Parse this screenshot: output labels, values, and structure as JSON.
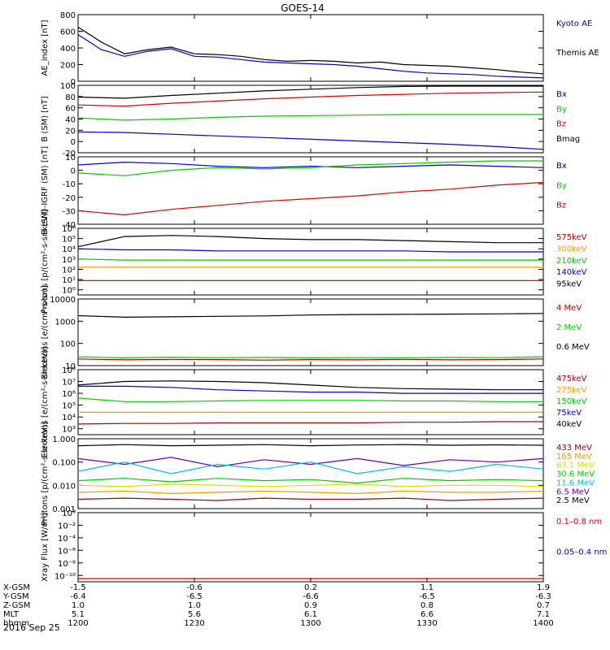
{
  "title": "GOES-14",
  "date_label": "2016 Sep 25",
  "colors": {
    "black": "#000000",
    "blue": "#0000cc",
    "green": "#00cc00",
    "red": "#dd0000",
    "darkred": "#aa0000",
    "orange": "#ff9900",
    "cyan": "#00bbee",
    "yellow": "#dddd00",
    "purple": "#6600aa"
  },
  "x_rows": [
    {
      "label": "X-GSM",
      "values": [
        "-1.5",
        "-0.6",
        "0.2",
        "1.1",
        "1.9"
      ]
    },
    {
      "label": "Y-GSM",
      "values": [
        "-6.4",
        "-6.5",
        "-6.6",
        "-6.5",
        "-6.3"
      ]
    },
    {
      "label": "Z-GSM",
      "values": [
        "1.0",
        "1.0",
        "0.9",
        "0.8",
        "0.7"
      ]
    },
    {
      "label": "MLT",
      "values": [
        "5.1",
        "5.6",
        "6.1",
        "6.6",
        "7.1"
      ]
    },
    {
      "label": "hhmm",
      "values": [
        "1200",
        "1230",
        "1300",
        "1330",
        "1400"
      ]
    }
  ],
  "chart_data": [
    {
      "type": "line",
      "ylabel": "AE_index [nT]",
      "scale": "linear",
      "ylim": [
        0,
        800
      ],
      "y_ticks": [
        0,
        200,
        400,
        600,
        800
      ],
      "x": [
        0,
        6,
        12,
        18,
        24,
        30,
        36,
        42,
        48,
        54,
        60,
        66,
        72,
        78,
        84,
        90,
        96,
        102,
        108,
        114,
        120
      ],
      "legend": [
        {
          "name": "Kyoto AE",
          "color": "blue"
        },
        {
          "name": "Themis AE",
          "color": "black"
        }
      ],
      "series": [
        {
          "name": "Kyoto AE",
          "color": "blue",
          "values": [
            560,
            380,
            300,
            360,
            390,
            300,
            290,
            260,
            230,
            220,
            210,
            200,
            180,
            150,
            120,
            100,
            90,
            80,
            60,
            50,
            40
          ]
        },
        {
          "name": "Themis AE",
          "color": "black",
          "values": [
            650,
            470,
            330,
            380,
            410,
            330,
            320,
            300,
            260,
            240,
            250,
            240,
            220,
            230,
            200,
            190,
            180,
            160,
            140,
            110,
            90
          ]
        }
      ]
    },
    {
      "type": "line",
      "ylabel": "B (SM) [nT]",
      "scale": "linear",
      "ylim": [
        -20,
        100
      ],
      "y_ticks": [
        -20,
        0,
        20,
        40,
        60,
        80,
        100
      ],
      "x": [
        0,
        12,
        24,
        36,
        48,
        60,
        72,
        84,
        96,
        108,
        120
      ],
      "legend": [
        {
          "name": "Bx",
          "color": "blue"
        },
        {
          "name": "By",
          "color": "green"
        },
        {
          "name": "Bz",
          "color": "red"
        },
        {
          "name": "Bmag",
          "color": "black"
        }
      ],
      "series": [
        {
          "name": "Bx",
          "color": "blue",
          "values": [
            17,
            16,
            13,
            10,
            7,
            4,
            1,
            -2,
            -5,
            -9,
            -14
          ]
        },
        {
          "name": "By",
          "color": "green",
          "values": [
            42,
            38,
            40,
            43,
            45,
            46,
            47,
            48,
            48,
            48,
            48
          ]
        },
        {
          "name": "Bz",
          "color": "red",
          "values": [
            65,
            63,
            68,
            72,
            76,
            79,
            82,
            84,
            86,
            87,
            88
          ]
        },
        {
          "name": "Bmag",
          "color": "black",
          "values": [
            79,
            77,
            82,
            86,
            90,
            93,
            96,
            98,
            99,
            100,
            102
          ]
        }
      ]
    },
    {
      "type": "line",
      "ylabel": "B (SM)-IGRF (SM) [nT]",
      "scale": "linear",
      "ylim": [
        -40,
        10
      ],
      "y_ticks": [
        -40,
        -30,
        -20,
        -10,
        0,
        10
      ],
      "x": [
        0,
        12,
        24,
        36,
        48,
        60,
        72,
        84,
        96,
        108,
        120
      ],
      "legend": [
        {
          "name": "Bx",
          "color": "blue"
        },
        {
          "name": "By",
          "color": "green"
        },
        {
          "name": "Bz",
          "color": "red"
        }
      ],
      "series": [
        {
          "name": "Bx",
          "color": "blue",
          "values": [
            4,
            6,
            5,
            3,
            2,
            3,
            2,
            3,
            4,
            3,
            2
          ]
        },
        {
          "name": "By",
          "color": "green",
          "values": [
            -2,
            -4,
            0,
            2,
            1,
            2,
            4,
            5,
            6,
            7,
            7
          ]
        },
        {
          "name": "Bz",
          "color": "red",
          "values": [
            -30,
            -33,
            -29,
            -26,
            -23,
            -21,
            -19,
            -16,
            -14,
            -11,
            -9
          ]
        }
      ]
    },
    {
      "type": "line",
      "ylabel": "Protons [p/(cm²-s-sr-keV)]",
      "scale": "log",
      "ylim_exp": [
        -0.5,
        6
      ],
      "y_tick_labels": [
        "10⁰",
        "10¹",
        "10²",
        "10³",
        "10⁴",
        "10⁵",
        "10⁶"
      ],
      "x": [
        0,
        12,
        24,
        36,
        48,
        60,
        72,
        84,
        96,
        108,
        120
      ],
      "legend": [
        {
          "name": "575keV",
          "color": "darkred"
        },
        {
          "name": "300keV",
          "color": "orange"
        },
        {
          "name": "210keV",
          "color": "green"
        },
        {
          "name": "140keV",
          "color": "blue"
        },
        {
          "name": "95keV",
          "color": "black"
        }
      ],
      "series_exp": [
        {
          "name": "95keV",
          "color": "black",
          "values": [
            4.2,
            5.2,
            5.3,
            5.2,
            5.0,
            4.9,
            4.9,
            4.8,
            4.7,
            4.6,
            4.6
          ]
        },
        {
          "name": "140keV",
          "color": "blue",
          "values": [
            4.0,
            3.9,
            3.9,
            3.8,
            3.8,
            3.8,
            3.8,
            3.8,
            3.7,
            3.7,
            3.7
          ]
        },
        {
          "name": "210keV",
          "color": "green",
          "values": [
            3.0,
            2.9,
            2.9,
            2.9,
            2.9,
            2.9,
            2.9,
            2.9,
            2.9,
            2.9,
            2.9
          ]
        },
        {
          "name": "300keV",
          "color": "orange",
          "values": [
            2.2,
            2.2,
            2.2,
            2.2,
            2.2,
            2.2,
            2.2,
            2.2,
            2.2,
            2.2,
            2.2
          ]
        },
        {
          "name": "575keV",
          "color": "darkred",
          "values": [
            0.9,
            0.9,
            0.9,
            0.9,
            0.9,
            0.9,
            0.9,
            0.9,
            0.9,
            0.9,
            0.9
          ]
        }
      ]
    },
    {
      "type": "line",
      "ylabel": "Electrons [e/(cm²-s-sr)]",
      "scale": "log",
      "ylim_exp": [
        1,
        4
      ],
      "y_tick_labels": [
        "10",
        "100",
        "1000",
        "10000"
      ],
      "x": [
        0,
        12,
        24,
        36,
        48,
        60,
        72,
        84,
        96,
        108,
        120
      ],
      "legend": [
        {
          "name": "4 MeV",
          "color": "darkred"
        },
        {
          "name": "2 MeV",
          "color": "green"
        },
        {
          "name": "0.6 MeV",
          "color": "black"
        }
      ],
      "series_exp": [
        {
          "name": "0.6 MeV",
          "color": "black",
          "values": [
            3.25,
            3.18,
            3.2,
            3.22,
            3.24,
            3.28,
            3.3,
            3.31,
            3.32,
            3.33,
            3.35
          ]
        },
        {
          "name": "2 MeV",
          "color": "green",
          "values": [
            1.4,
            1.35,
            1.38,
            1.36,
            1.37,
            1.35,
            1.36,
            1.35,
            1.37,
            1.36,
            1.4
          ]
        },
        {
          "name": "4 MeV",
          "color": "darkred",
          "values": [
            1.3,
            1.26,
            1.28,
            1.27,
            1.25,
            1.27,
            1.26,
            1.28,
            1.26,
            1.27,
            1.3
          ]
        }
      ]
    },
    {
      "type": "line",
      "ylabel": "Electrons [e/(cm²-s-sr-keV)]",
      "scale": "log",
      "ylim_exp": [
        2.5,
        8
      ],
      "y_tick_labels": [
        "10³",
        "10⁴",
        "10⁵",
        "10⁶",
        "10⁷",
        "10⁸"
      ],
      "x": [
        0,
        12,
        24,
        36,
        48,
        60,
        72,
        84,
        96,
        108,
        120
      ],
      "legend": [
        {
          "name": "475keV",
          "color": "darkred"
        },
        {
          "name": "275keV",
          "color": "orange"
        },
        {
          "name": "150keV",
          "color": "green"
        },
        {
          "name": "75keV",
          "color": "blue"
        },
        {
          "name": "40keV",
          "color": "black"
        }
      ],
      "series_exp": [
        {
          "name": "40keV",
          "color": "black",
          "values": [
            6.7,
            7.0,
            7.05,
            7.0,
            6.9,
            6.7,
            6.5,
            6.4,
            6.35,
            6.3,
            6.3
          ]
        },
        {
          "name": "75keV",
          "color": "blue",
          "values": [
            6.6,
            6.6,
            6.5,
            6.3,
            6.2,
            6.1,
            6.1,
            6.0,
            6.0,
            6.0,
            6.0
          ]
        },
        {
          "name": "150keV",
          "color": "green",
          "values": [
            5.6,
            5.3,
            5.3,
            5.35,
            5.4,
            5.4,
            5.4,
            5.35,
            5.35,
            5.3,
            5.3
          ]
        },
        {
          "name": "275keV",
          "color": "orange",
          "values": [
            4.4,
            4.4,
            4.4,
            4.4,
            4.4,
            4.4,
            4.4,
            4.4,
            4.4,
            4.4,
            4.4
          ]
        },
        {
          "name": "475keV",
          "color": "darkred",
          "values": [
            3.4,
            3.45,
            3.45,
            3.5,
            3.5,
            3.5,
            3.5,
            3.55,
            3.55,
            3.6,
            3.6
          ]
        }
      ]
    },
    {
      "type": "line",
      "ylabel": "Protons [p/(cm²-s-sr-keV)]",
      "scale": "log",
      "ylim_exp": [
        -3,
        0
      ],
      "y_tick_labels": [
        "0.001",
        "0.010",
        "0.100",
        "1.000"
      ],
      "x": [
        0,
        12,
        24,
        36,
        48,
        60,
        72,
        84,
        96,
        108,
        120
      ],
      "legend": [
        {
          "name": "433 MeV",
          "color": "darkred"
        },
        {
          "name": "165 MeV",
          "color": "orange"
        },
        {
          "name": "63.1 MeV",
          "color": "yellow"
        },
        {
          "name": "30.6 MeV",
          "color": "green"
        },
        {
          "name": "11.6 MeV",
          "color": "cyan"
        },
        {
          "name": "6.5 MeV",
          "color": "purple"
        },
        {
          "name": "2.5 MeV",
          "color": "black"
        }
      ],
      "series_exp": [
        {
          "name": "2.5 MeV",
          "color": "black",
          "values": [
            -0.3,
            -0.25,
            -0.3,
            -0.28,
            -0.25,
            -0.3,
            -0.27,
            -0.25,
            -0.28,
            -0.26,
            -0.28
          ]
        },
        {
          "name": "6.5 MeV",
          "color": "purple",
          "values": [
            -0.85,
            -1.1,
            -0.8,
            -1.2,
            -0.9,
            -1.1,
            -0.85,
            -1.15,
            -0.9,
            -1.0,
            -0.85
          ]
        },
        {
          "name": "11.6 MeV",
          "color": "cyan",
          "values": [
            -1.4,
            -1.0,
            -1.5,
            -1.1,
            -1.3,
            -1.0,
            -1.5,
            -1.2,
            -1.4,
            -1.1,
            -1.3
          ]
        },
        {
          "name": "30.6 MeV",
          "color": "green",
          "values": [
            -1.8,
            -1.7,
            -1.85,
            -1.7,
            -1.8,
            -1.75,
            -1.9,
            -1.7,
            -1.8,
            -1.75,
            -1.8
          ]
        },
        {
          "name": "63.1 MeV",
          "color": "yellow",
          "values": [
            -2.0,
            -2.05,
            -1.95,
            -2.0,
            -2.05,
            -2.0,
            -1.95,
            -2.05,
            -2.0,
            -2.0,
            -2.05
          ]
        },
        {
          "name": "165 MeV",
          "color": "orange",
          "values": [
            -2.3,
            -2.25,
            -2.35,
            -2.3,
            -2.25,
            -2.3,
            -2.35,
            -2.25,
            -2.3,
            -2.3,
            -2.25
          ]
        },
        {
          "name": "433 MeV",
          "color": "darkred",
          "values": [
            -2.6,
            -2.55,
            -2.6,
            -2.65,
            -2.55,
            -2.6,
            -2.6,
            -2.55,
            -2.65,
            -2.6,
            -2.55
          ]
        }
      ]
    },
    {
      "type": "line",
      "ylabel": "Xray Flux [W/m²]",
      "scale": "log",
      "ylim_exp": [
        -11,
        0
      ],
      "y_tick_labels": [
        "10⁻¹⁰",
        "10⁻⁸",
        "10⁻⁶",
        "10⁻⁴",
        "10⁻²",
        "10⁰"
      ],
      "x": [
        0,
        120
      ],
      "legend": [
        {
          "name": "0.1–0.8 nm",
          "color": "red"
        },
        {
          "name": "0.05–0.4 nm",
          "color": "blue"
        }
      ],
      "series_exp": [
        {
          "name": "0.1–0.8 nm",
          "color": "red",
          "values": [
            -10.5,
            -10.5
          ]
        }
      ]
    }
  ]
}
